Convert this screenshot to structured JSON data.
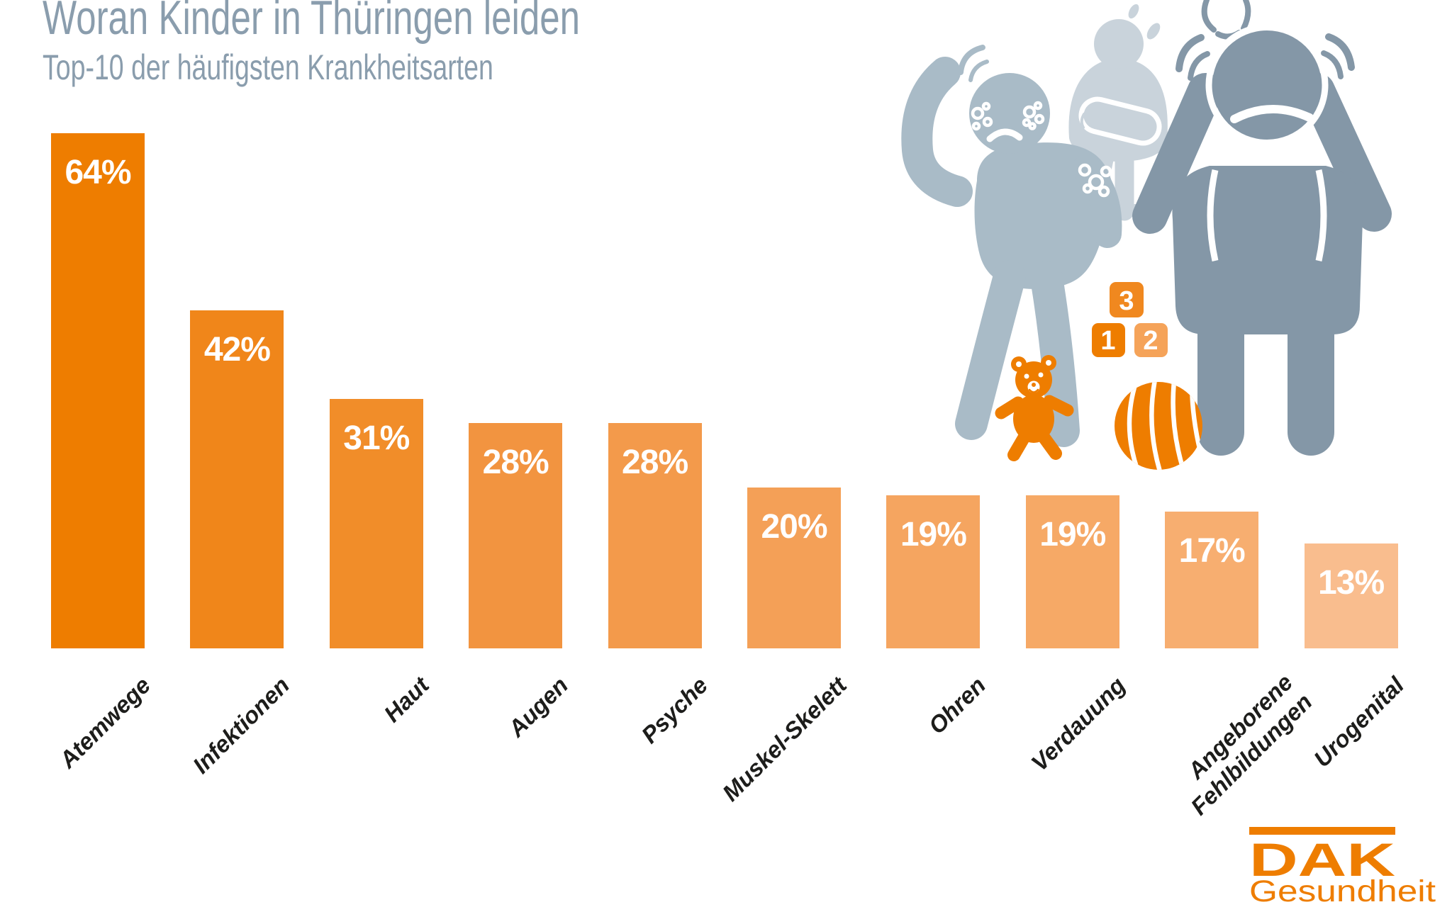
{
  "header": {
    "title": "Woran Kinder in Thüringen leiden",
    "subtitle": "Top-10 der häufigsten Krankheitsarten"
  },
  "chart_data": {
    "type": "bar",
    "title": "Woran Kinder in Thüringen leiden",
    "subtitle": "Top-10 der häufigsten Krankheitsarten",
    "categories": [
      "Atemwege",
      "Infektionen",
      "Haut",
      "Augen",
      "Psyche",
      "Muskel-Skelett",
      "Ohren",
      "Verdauung",
      "Angeborene\nFehlbildungen",
      "Urogenital"
    ],
    "values": [
      64,
      42,
      31,
      28,
      28,
      20,
      19,
      19,
      17,
      13
    ],
    "value_labels": [
      "64%",
      "42%",
      "31%",
      "28%",
      "28%",
      "20%",
      "19%",
      "19%",
      "17%",
      "13%"
    ],
    "bar_colors": [
      "#EE7D00",
      "#F0861A",
      "#F18D29",
      "#F29440",
      "#F39A4B",
      "#F4A057",
      "#F5A560",
      "#F6A966",
      "#F7AE70",
      "#F9BD8E"
    ],
    "value_label_color": "#ffffff",
    "xlabel": "",
    "ylabel": "",
    "ylim": [
      0,
      64
    ],
    "grid": false,
    "legend": false,
    "x_labels_rotated_deg": 45
  },
  "illustration": {
    "figures": [
      "child-with-rash",
      "child-with-stomach-ache",
      "child-covering-ears"
    ],
    "toys": [
      "teddy-bear",
      "number-blocks",
      "striped-ball"
    ],
    "block_numbers": [
      "3",
      "1",
      "2"
    ],
    "colors": {
      "child_rash_gray": "#a9bbc7",
      "child_stomach_gray": "#c9d3db",
      "child_ears_gray": "#8497a7",
      "toy_orange": "#ee7d00",
      "block3_orange": "#f0881f",
      "block2_orange": "#f5a359"
    }
  },
  "logo": {
    "brand": "DAK",
    "subtext": "Gesundheit",
    "color": "#ee7d00"
  },
  "colors": {
    "background": "#ffffff",
    "title_gray_blue": "#8a9dad",
    "category_label": "#1d1d1b",
    "primary_orange": "#ee7d00"
  }
}
